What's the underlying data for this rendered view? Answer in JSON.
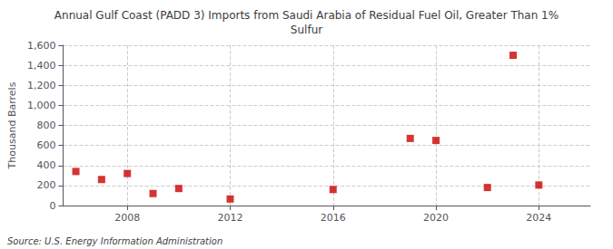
{
  "chart_data": {
    "type": "scatter",
    "title": "Annual Gulf Coast (PADD 3) Imports from Saudi Arabia of Residual Fuel Oil, Greater Than 1%\nSulfur",
    "ylabel": "Thousand Barrels",
    "annotation": "Source: U.S. Energy Information Administration",
    "x": [
      2006,
      2007,
      2008,
      2009,
      2010,
      2012,
      2016,
      2019,
      2020,
      2022,
      2023,
      2024
    ],
    "values": [
      340,
      260,
      320,
      120,
      170,
      65,
      160,
      670,
      650,
      180,
      1500,
      205
    ],
    "color": "#cc0000",
    "marker": "square",
    "xlim": [
      2005.5,
      2026
    ],
    "xticks": [
      2008,
      2012,
      2016,
      2020,
      2024
    ],
    "ylim": [
      0,
      1600
    ],
    "yticks": [
      0,
      200,
      400,
      600,
      800,
      {
        "value": 1000,
        "label": "1,000"
      },
      {
        "value": 1200,
        "label": "1,200"
      },
      {
        "value": 1400,
        "label": "1,400"
      },
      {
        "value": 1600,
        "label": "1,600"
      }
    ],
    "grid": true
  }
}
